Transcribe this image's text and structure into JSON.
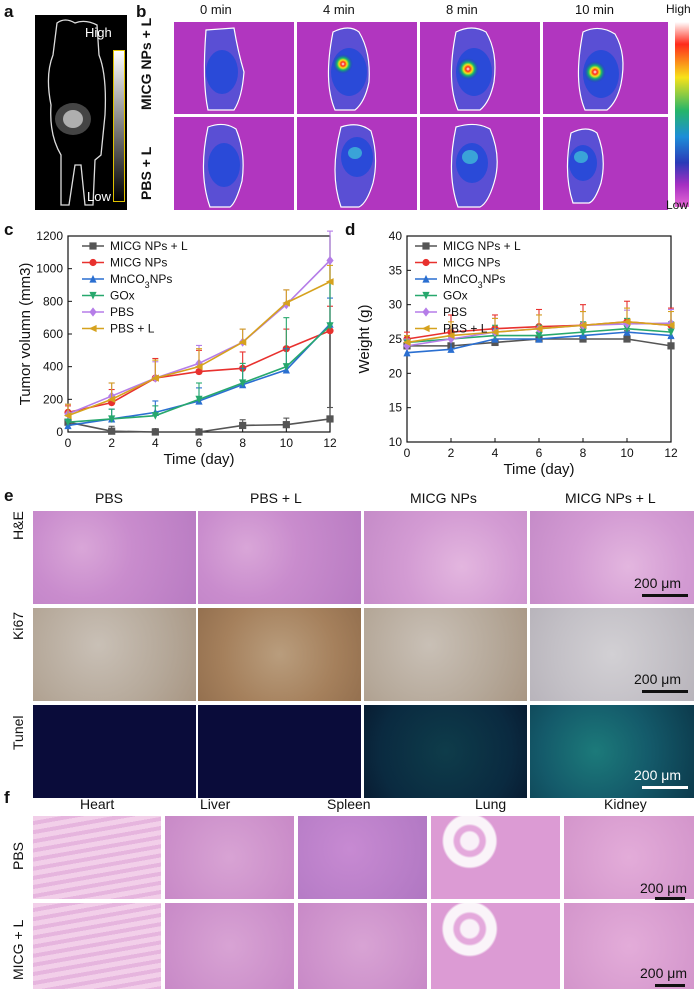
{
  "panel_labels": {
    "a": "a",
    "b": "b",
    "c": "c",
    "d": "d",
    "e": "e",
    "f": "f"
  },
  "panel_a": {
    "high": "High",
    "low": "Low"
  },
  "panel_b": {
    "times": [
      "0 min",
      "4 min",
      "8 min",
      "10 min"
    ],
    "rows": [
      "MICG NPs + L",
      "PBS + L"
    ],
    "colorbar_high": "High",
    "colorbar_low": "Low"
  },
  "colors": {
    "s1": "#555555",
    "s2": "#e8312e",
    "s3": "#2a6fd1",
    "s4": "#27a86d",
    "s5": "#b57de8",
    "s6": "#d6a21e"
  },
  "chart_data": [
    {
      "type": "line",
      "xlabel": "Time (day)",
      "ylabel": "Tumor volumn (mm3)",
      "x": [
        0,
        2,
        4,
        6,
        8,
        10,
        12
      ],
      "xlim": [
        0,
        12
      ],
      "ylim": [
        0,
        1200
      ],
      "xticks": [
        "0",
        "2",
        "4",
        "6",
        "8",
        "10",
        "12"
      ],
      "yticks": [
        "0",
        "200",
        "400",
        "600",
        "800",
        "1000",
        "1200"
      ],
      "series": [
        {
          "name": "MICG NPs + L",
          "values": [
            60,
            5,
            0,
            0,
            40,
            45,
            80
          ],
          "err": [
            60,
            30,
            20,
            15,
            35,
            40,
            70
          ]
        },
        {
          "name": "MICG NPs",
          "values": [
            120,
            180,
            330,
            370,
            390,
            510,
            620
          ],
          "err": [
            40,
            80,
            120,
            130,
            100,
            120,
            150
          ]
        },
        {
          "name": "MnCO3 NPs",
          "values": [
            40,
            80,
            120,
            190,
            290,
            380,
            660
          ],
          "err": [
            30,
            60,
            70,
            80,
            100,
            130,
            160
          ]
        },
        {
          "name": "GOx",
          "values": [
            60,
            80,
            100,
            200,
            300,
            400,
            650
          ],
          "err": [
            40,
            60,
            60,
            100,
            120,
            300,
            400
          ]
        },
        {
          "name": "PBS",
          "values": [
            110,
            220,
            330,
            420,
            550,
            780,
            1050
          ],
          "err": [
            60,
            80,
            100,
            110,
            80,
            90,
            180
          ]
        },
        {
          "name": "PBS + L",
          "values": [
            100,
            200,
            330,
            400,
            550,
            790,
            920
          ],
          "err": [
            70,
            100,
            110,
            110,
            80,
            80,
            100
          ]
        }
      ]
    },
    {
      "type": "line",
      "xlabel": "Time (day)",
      "ylabel": "Weight (g)",
      "x": [
        0,
        2,
        4,
        6,
        8,
        10,
        12
      ],
      "xlim": [
        0,
        12
      ],
      "ylim": [
        10,
        40
      ],
      "xticks": [
        "0",
        "2",
        "4",
        "6",
        "8",
        "10",
        "12"
      ],
      "yticks": [
        "10",
        "15",
        "20",
        "25",
        "30",
        "35",
        "40"
      ],
      "series": [
        {
          "name": "MICG NPs + L",
          "values": [
            24,
            24,
            24.5,
            25,
            25,
            25,
            24
          ],
          "err": [
            1,
            1,
            1,
            1,
            1,
            1.2,
            1.2
          ]
        },
        {
          "name": "MICG NPs",
          "values": [
            25,
            26,
            26.5,
            26.8,
            27,
            27.5,
            27
          ],
          "err": [
            1,
            2.5,
            2,
            2.5,
            3,
            3,
            2.5
          ]
        },
        {
          "name": "MnCO3 NPs",
          "values": [
            23,
            23.5,
            25,
            25,
            25.5,
            26,
            25.5
          ],
          "err": [
            1,
            1.5,
            1.5,
            1.5,
            1.5,
            1.5,
            1.5
          ]
        },
        {
          "name": "GOx",
          "values": [
            24.5,
            25,
            25.5,
            25.5,
            26,
            26.5,
            26
          ],
          "err": [
            1,
            1.5,
            1.5,
            1.5,
            1.5,
            1.5,
            1.5
          ]
        },
        {
          "name": "PBS",
          "values": [
            24,
            25,
            26,
            26.5,
            27,
            27.2,
            27.3
          ],
          "err": [
            1,
            1.5,
            2,
            2,
            2,
            2,
            2
          ]
        },
        {
          "name": "PBS + L",
          "values": [
            24.5,
            25.5,
            26,
            26.5,
            27,
            27.5,
            27
          ],
          "err": [
            1,
            2,
            2,
            2,
            2,
            2,
            2
          ]
        }
      ]
    }
  ],
  "legend_c": [
    "MICG NPs + L",
    "MICG NPs",
    "MnCO3 NPs",
    "GOx",
    "PBS",
    "PBS + L"
  ],
  "panel_e": {
    "columns": [
      "PBS",
      "PBS + L",
      "MICG NPs",
      "MICG NPs + L"
    ],
    "rows": [
      "H&E",
      "Ki67",
      "Tunel"
    ],
    "scale": "200 μm"
  },
  "panel_f": {
    "columns": [
      "Heart",
      "Liver",
      "Spleen",
      "Lung",
      "Kidney"
    ],
    "rows": [
      "PBS",
      "MICG + L"
    ],
    "scale": "200 μm"
  }
}
